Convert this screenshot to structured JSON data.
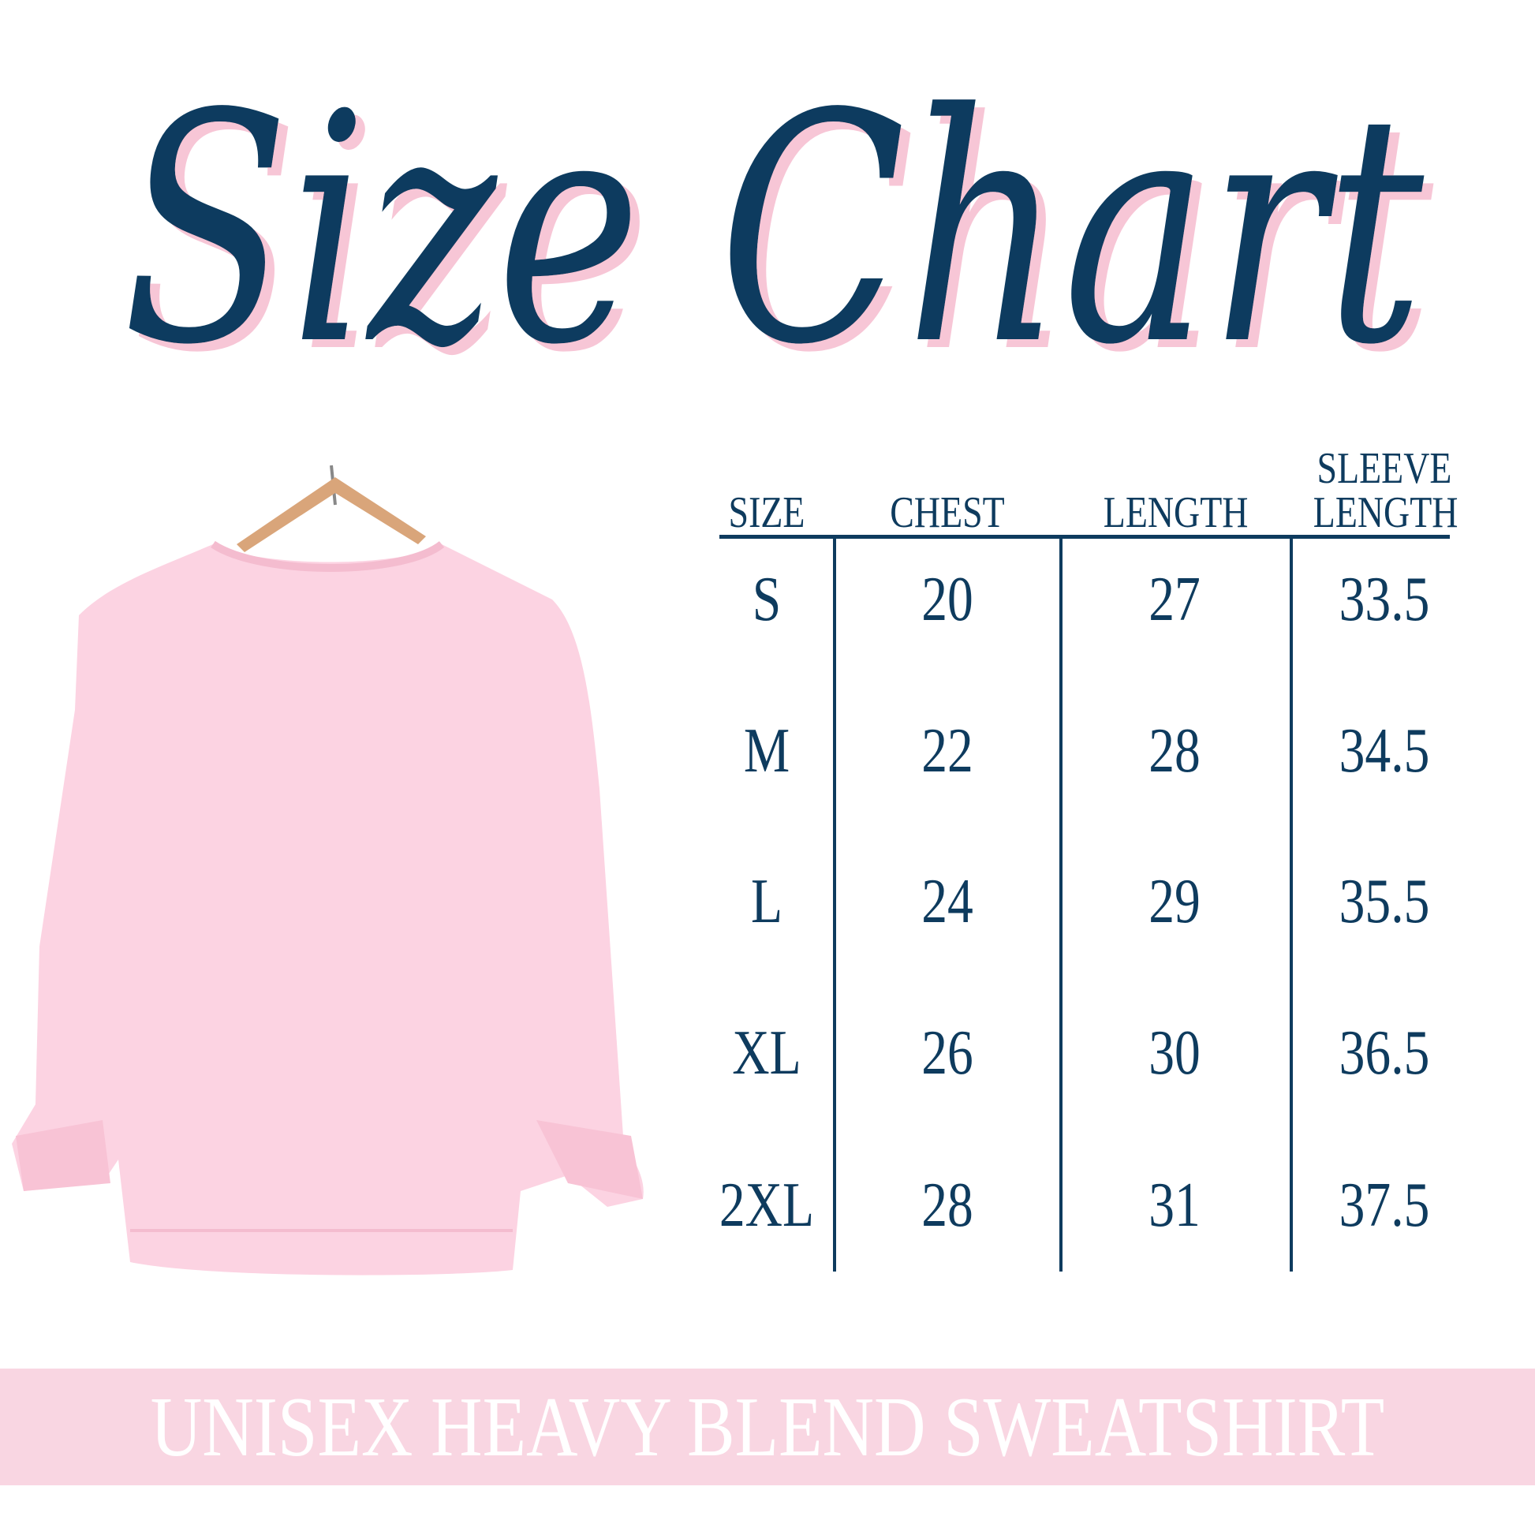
{
  "title": "Size Chart",
  "colors": {
    "navy": "#0e3b5e",
    "pink": "#f9d6e2",
    "shadow": "#f7c6d6",
    "shirt": "#fcd3e2"
  },
  "product_image": "pink-crewneck-sweatshirt-on-hanger",
  "table": {
    "headers": [
      "SIZE",
      "CHEST",
      "LENGTH",
      "SLEEVE LENGTH"
    ],
    "headers_split": {
      "sleeve_line1": "SLEEVE",
      "sleeve_line2": "LENGTH"
    },
    "rows": [
      [
        "S",
        "20",
        "27",
        "33.5"
      ],
      [
        "M",
        "22",
        "28",
        "34.5"
      ],
      [
        "L",
        "24",
        "29",
        "35.5"
      ],
      [
        "XL",
        "26",
        "30",
        "36.5"
      ],
      [
        "2XL",
        "28",
        "31",
        "37.5"
      ]
    ]
  },
  "footer": "UNISEX HEAVY BLEND SWEATSHIRT"
}
